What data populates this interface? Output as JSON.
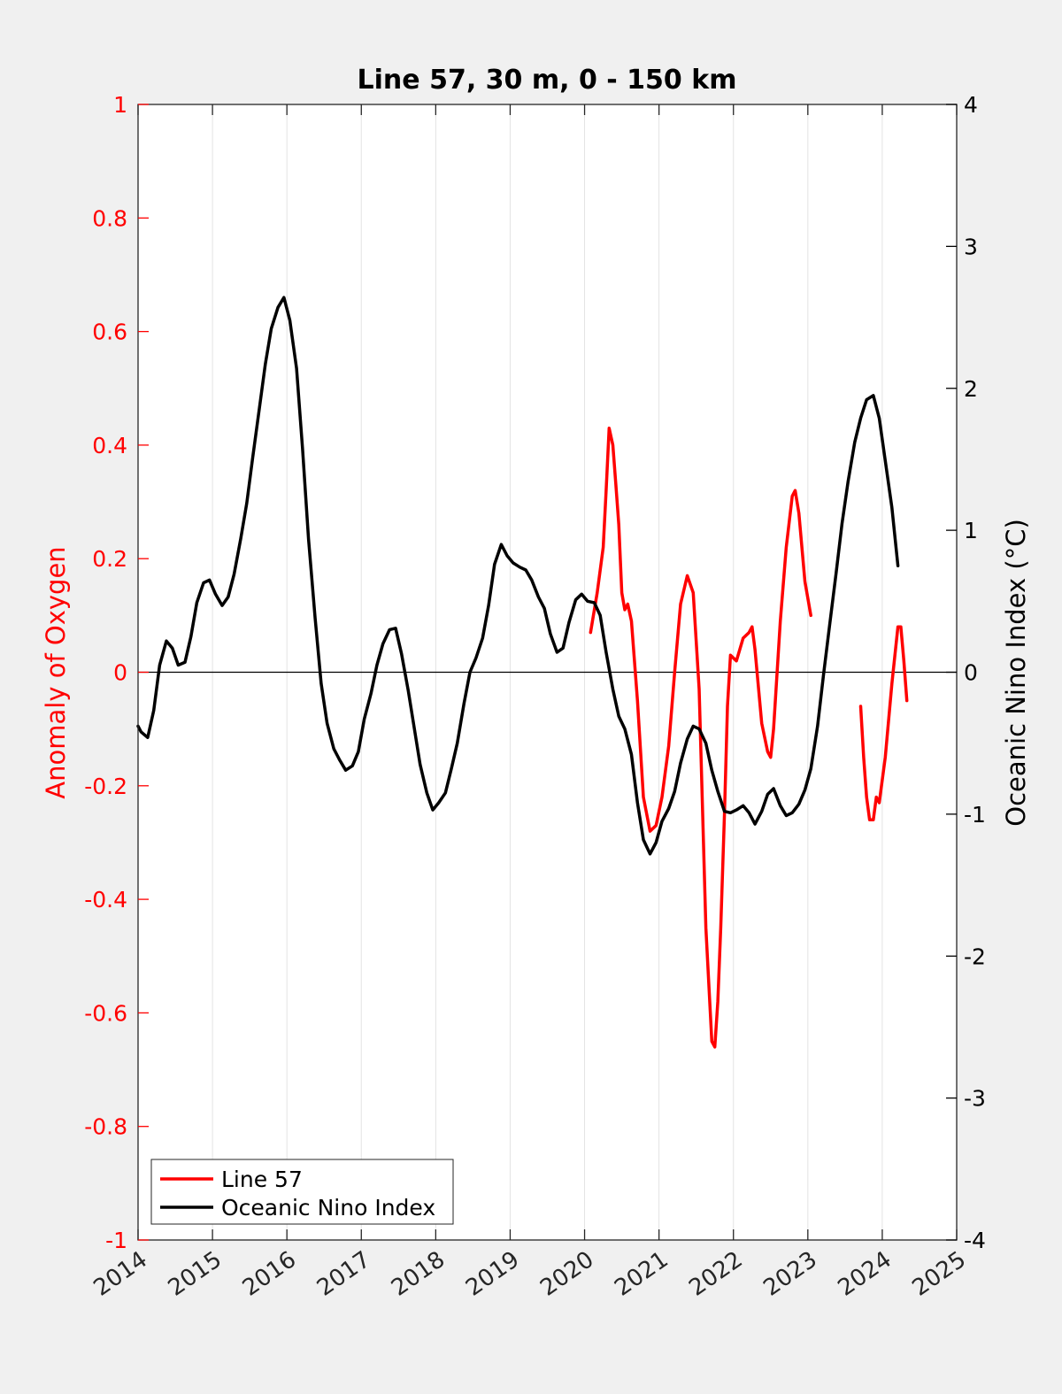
{
  "chart_data": {
    "type": "line",
    "title": "Line 57, 30 m, 0 - 150 km",
    "ylabel_left": "Anomaly of Oxygen",
    "ylabel_right": "Oceanic Nino Index (°C)",
    "xlabel": "",
    "xlim": [
      2014,
      2025
    ],
    "ylim_left": [
      -1,
      1
    ],
    "ylim_right": [
      -4,
      4
    ],
    "x_ticks": [
      "2014",
      "2015",
      "2016",
      "2017",
      "2018",
      "2019",
      "2020",
      "2021",
      "2022",
      "2023",
      "2024",
      "2025"
    ],
    "y_ticks_left": [
      "1",
      "0.8",
      "0.6",
      "0.4",
      "0.2",
      "0",
      "-0.2",
      "-0.4",
      "-0.6",
      "-0.8",
      "-1"
    ],
    "y_ticks_right": [
      "4",
      "3",
      "2",
      "1",
      "0",
      "-1",
      "-2",
      "-3",
      "-4"
    ],
    "grid": "vertical",
    "legend_position": "bottom-left",
    "colors": {
      "line57": "#ff0000",
      "oni": "#000000",
      "left_axis": "#ff0000",
      "right_axis": "#000000"
    },
    "series": [
      {
        "name": "Line 57",
        "axis": "left",
        "segments": [
          [
            [
              2020.08,
              0.07
            ],
            [
              2020.17,
              0.14
            ],
            [
              2020.25,
              0.22
            ],
            [
              2020.29,
              0.32
            ],
            [
              2020.33,
              0.43
            ],
            [
              2020.38,
              0.4
            ],
            [
              2020.42,
              0.33
            ],
            [
              2020.46,
              0.26
            ],
            [
              2020.5,
              0.14
            ],
            [
              2020.54,
              0.11
            ],
            [
              2020.58,
              0.12
            ],
            [
              2020.63,
              0.09
            ],
            [
              2020.71,
              -0.05
            ],
            [
              2020.79,
              -0.22
            ],
            [
              2020.88,
              -0.28
            ],
            [
              2020.96,
              -0.27
            ],
            [
              2021.04,
              -0.22
            ],
            [
              2021.13,
              -0.13
            ],
            [
              2021.21,
              0.0
            ],
            [
              2021.29,
              0.12
            ],
            [
              2021.38,
              0.17
            ],
            [
              2021.46,
              0.14
            ],
            [
              2021.54,
              -0.03
            ],
            [
              2021.63,
              -0.45
            ],
            [
              2021.71,
              -0.65
            ],
            [
              2021.75,
              -0.66
            ],
            [
              2021.79,
              -0.58
            ],
            [
              2021.83,
              -0.45
            ],
            [
              2021.88,
              -0.25
            ],
            [
              2021.92,
              -0.06
            ],
            [
              2021.96,
              0.03
            ],
            [
              2022.04,
              0.02
            ],
            [
              2022.13,
              0.06
            ],
            [
              2022.21,
              0.07
            ],
            [
              2022.25,
              0.08
            ],
            [
              2022.29,
              0.04
            ],
            [
              2022.38,
              -0.09
            ],
            [
              2022.46,
              -0.14
            ],
            [
              2022.5,
              -0.15
            ],
            [
              2022.54,
              -0.1
            ],
            [
              2022.63,
              0.09
            ],
            [
              2022.71,
              0.22
            ],
            [
              2022.79,
              0.31
            ],
            [
              2022.83,
              0.32
            ],
            [
              2022.88,
              0.28
            ],
            [
              2022.96,
              0.16
            ],
            [
              2023.04,
              0.1
            ]
          ],
          [
            [
              2023.71,
              -0.06
            ],
            [
              2023.75,
              -0.15
            ],
            [
              2023.79,
              -0.22
            ],
            [
              2023.83,
              -0.26
            ],
            [
              2023.88,
              -0.26
            ],
            [
              2023.92,
              -0.22
            ],
            [
              2023.96,
              -0.23
            ],
            [
              2024.04,
              -0.15
            ],
            [
              2024.13,
              -0.02
            ],
            [
              2024.21,
              0.08
            ],
            [
              2024.25,
              0.08
            ],
            [
              2024.29,
              0.02
            ],
            [
              2024.33,
              -0.05
            ]
          ]
        ]
      },
      {
        "name": "Oceanic Nino Index",
        "axis": "right",
        "segments": [
          [
            [
              2014.0,
              -0.38
            ],
            [
              2014.04,
              -0.42
            ],
            [
              2014.13,
              -0.46
            ],
            [
              2014.21,
              -0.27
            ],
            [
              2014.29,
              0.05
            ],
            [
              2014.38,
              0.22
            ],
            [
              2014.46,
              0.17
            ],
            [
              2014.54,
              0.05
            ],
            [
              2014.63,
              0.07
            ],
            [
              2014.71,
              0.25
            ],
            [
              2014.79,
              0.49
            ],
            [
              2014.88,
              0.63
            ],
            [
              2014.96,
              0.65
            ],
            [
              2015.04,
              0.55
            ],
            [
              2015.13,
              0.47
            ],
            [
              2015.21,
              0.53
            ],
            [
              2015.29,
              0.69
            ],
            [
              2015.38,
              0.94
            ],
            [
              2015.46,
              1.19
            ],
            [
              2015.54,
              1.51
            ],
            [
              2015.63,
              1.86
            ],
            [
              2015.71,
              2.17
            ],
            [
              2015.79,
              2.42
            ],
            [
              2015.88,
              2.57
            ],
            [
              2015.96,
              2.64
            ],
            [
              2016.04,
              2.48
            ],
            [
              2016.13,
              2.14
            ],
            [
              2016.21,
              1.58
            ],
            [
              2016.29,
              0.94
            ],
            [
              2016.38,
              0.38
            ],
            [
              2016.46,
              -0.08
            ],
            [
              2016.54,
              -0.36
            ],
            [
              2016.63,
              -0.54
            ],
            [
              2016.71,
              -0.62
            ],
            [
              2016.79,
              -0.69
            ],
            [
              2016.88,
              -0.66
            ],
            [
              2016.96,
              -0.56
            ],
            [
              2017.04,
              -0.33
            ],
            [
              2017.13,
              -0.15
            ],
            [
              2017.21,
              0.05
            ],
            [
              2017.29,
              0.2
            ],
            [
              2017.38,
              0.3
            ],
            [
              2017.46,
              0.31
            ],
            [
              2017.54,
              0.13
            ],
            [
              2017.63,
              -0.13
            ],
            [
              2017.71,
              -0.39
            ],
            [
              2017.79,
              -0.65
            ],
            [
              2017.88,
              -0.85
            ],
            [
              2017.96,
              -0.97
            ],
            [
              2018.04,
              -0.92
            ],
            [
              2018.13,
              -0.85
            ],
            [
              2018.21,
              -0.68
            ],
            [
              2018.29,
              -0.5
            ],
            [
              2018.38,
              -0.22
            ],
            [
              2018.46,
              0.0
            ],
            [
              2018.54,
              0.1
            ],
            [
              2018.63,
              0.24
            ],
            [
              2018.71,
              0.47
            ],
            [
              2018.79,
              0.76
            ],
            [
              2018.88,
              0.9
            ],
            [
              2018.96,
              0.82
            ],
            [
              2019.04,
              0.77
            ],
            [
              2019.13,
              0.74
            ],
            [
              2019.21,
              0.72
            ],
            [
              2019.29,
              0.65
            ],
            [
              2019.38,
              0.53
            ],
            [
              2019.46,
              0.45
            ],
            [
              2019.54,
              0.27
            ],
            [
              2019.63,
              0.14
            ],
            [
              2019.71,
              0.17
            ],
            [
              2019.79,
              0.35
            ],
            [
              2019.88,
              0.51
            ],
            [
              2019.96,
              0.55
            ],
            [
              2020.04,
              0.5
            ],
            [
              2020.13,
              0.49
            ],
            [
              2020.21,
              0.4
            ],
            [
              2020.29,
              0.14
            ],
            [
              2020.38,
              -0.12
            ],
            [
              2020.46,
              -0.31
            ],
            [
              2020.54,
              -0.4
            ],
            [
              2020.63,
              -0.58
            ],
            [
              2020.71,
              -0.92
            ],
            [
              2020.79,
              -1.18
            ],
            [
              2020.88,
              -1.28
            ],
            [
              2020.96,
              -1.2
            ],
            [
              2021.04,
              -1.05
            ],
            [
              2021.13,
              -0.96
            ],
            [
              2021.21,
              -0.84
            ],
            [
              2021.29,
              -0.64
            ],
            [
              2021.38,
              -0.47
            ],
            [
              2021.46,
              -0.38
            ],
            [
              2021.54,
              -0.4
            ],
            [
              2021.63,
              -0.5
            ],
            [
              2021.71,
              -0.69
            ],
            [
              2021.79,
              -0.84
            ],
            [
              2021.88,
              -0.98
            ],
            [
              2021.96,
              -0.99
            ],
            [
              2022.04,
              -0.97
            ],
            [
              2022.13,
              -0.94
            ],
            [
              2022.21,
              -0.99
            ],
            [
              2022.29,
              -1.07
            ],
            [
              2022.38,
              -0.98
            ],
            [
              2022.46,
              -0.86
            ],
            [
              2022.54,
              -0.82
            ],
            [
              2022.63,
              -0.94
            ],
            [
              2022.71,
              -1.01
            ],
            [
              2022.79,
              -0.99
            ],
            [
              2022.88,
              -0.93
            ],
            [
              2022.96,
              -0.83
            ],
            [
              2023.04,
              -0.68
            ],
            [
              2023.13,
              -0.38
            ],
            [
              2023.21,
              -0.02
            ],
            [
              2023.29,
              0.32
            ],
            [
              2023.38,
              0.7
            ],
            [
              2023.46,
              1.05
            ],
            [
              2023.54,
              1.34
            ],
            [
              2023.63,
              1.62
            ],
            [
              2023.71,
              1.79
            ],
            [
              2023.79,
              1.92
            ],
            [
              2023.88,
              1.95
            ],
            [
              2023.96,
              1.79
            ],
            [
              2024.04,
              1.49
            ],
            [
              2024.13,
              1.16
            ],
            [
              2024.21,
              0.75
            ]
          ]
        ]
      }
    ]
  }
}
